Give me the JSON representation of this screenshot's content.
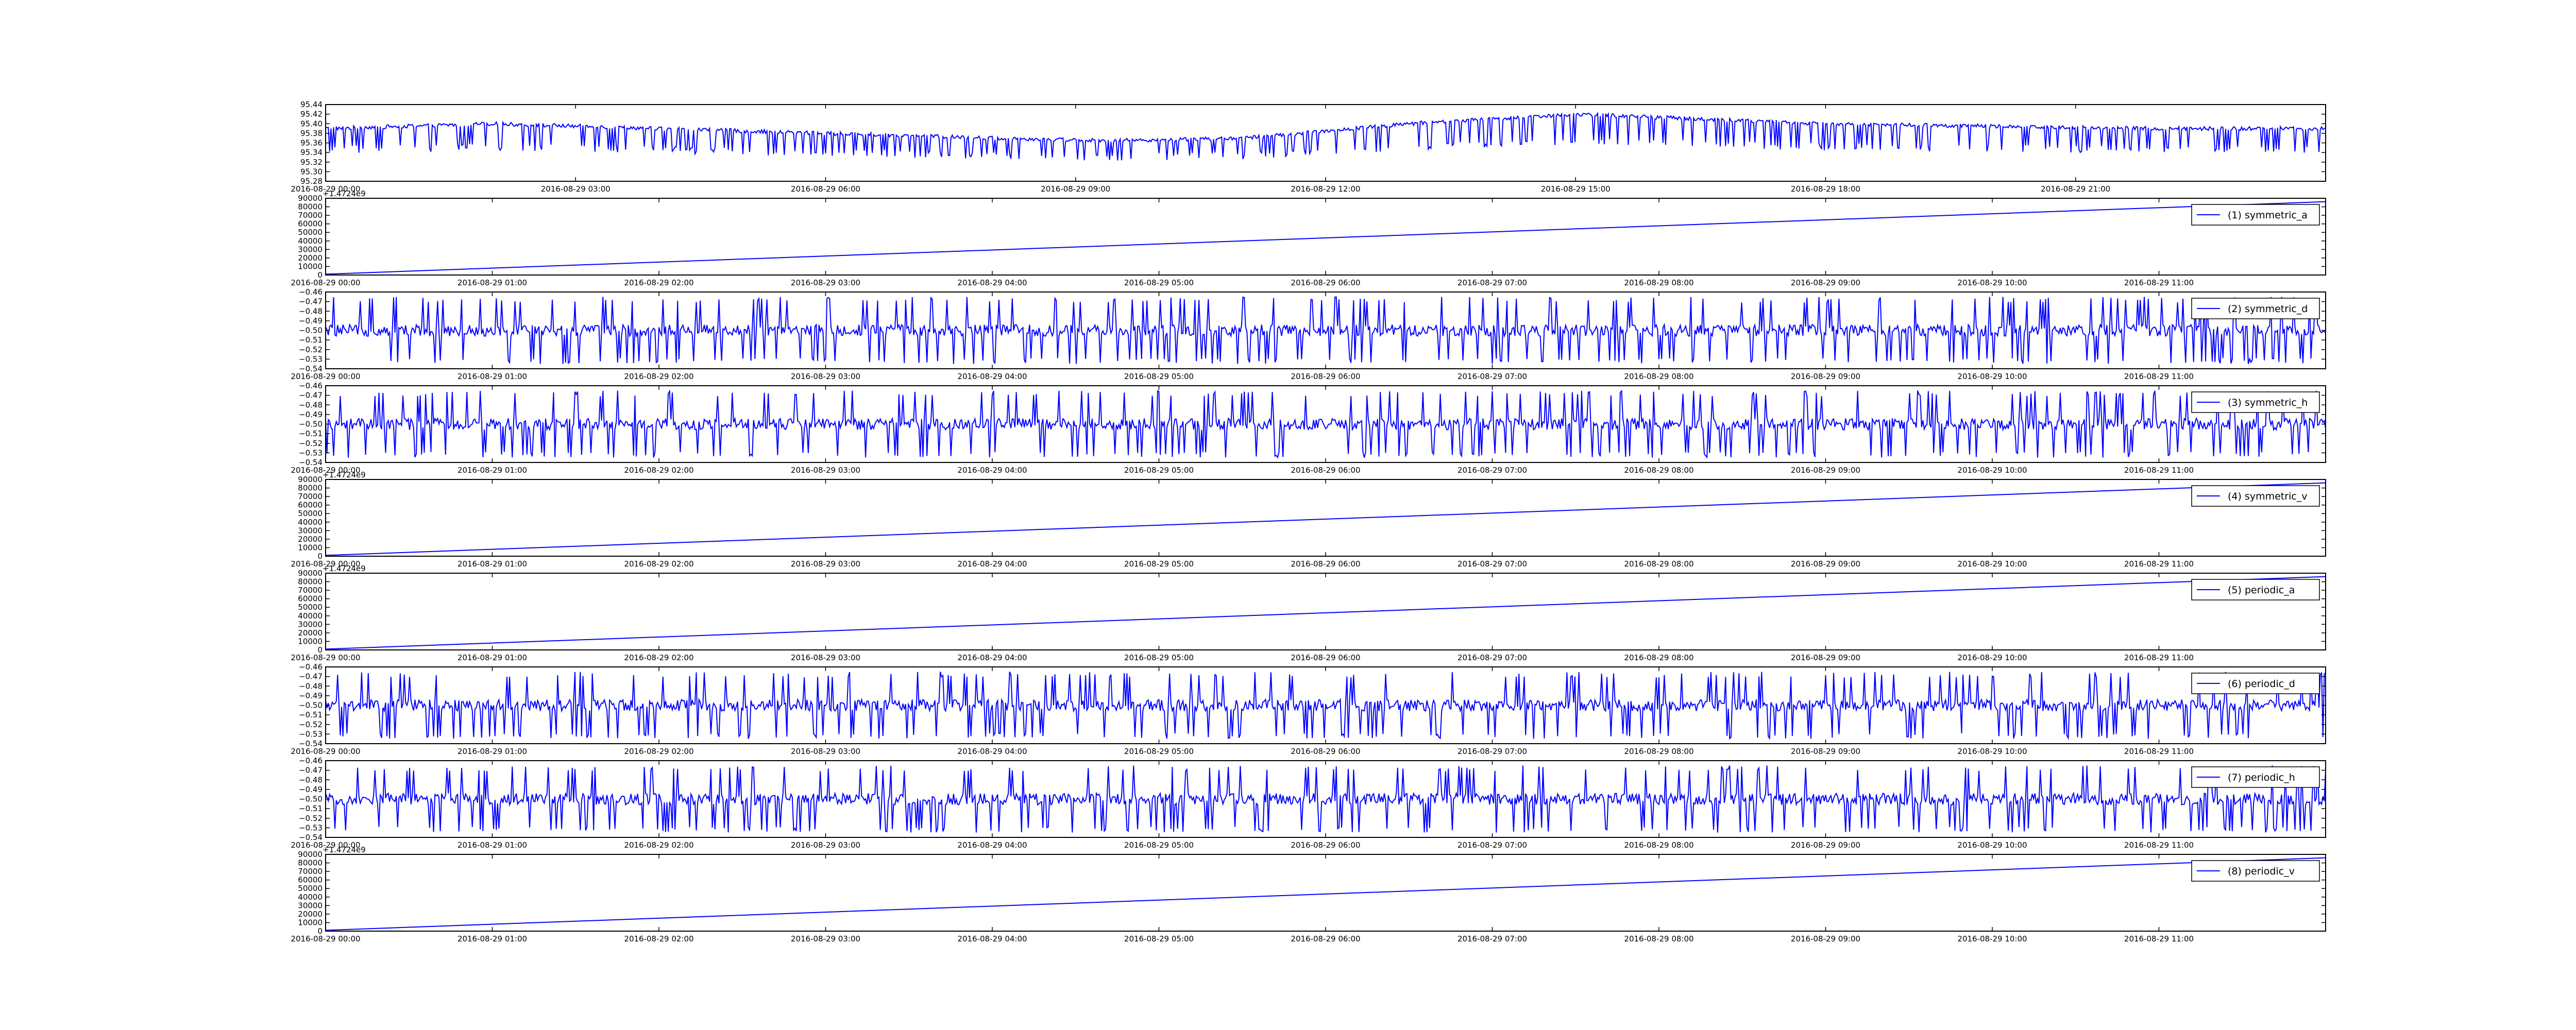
{
  "figure": {
    "background": "#ffffff",
    "line_color": "#0000ff",
    "frame_color": "#000000"
  },
  "chart_data": [
    {
      "type": "line",
      "title": "",
      "xlabel": "",
      "ylabel": "",
      "legend": null,
      "legend_position": "none",
      "grid": false,
      "pattern": "wave_dropouts",
      "offset_label": "",
      "xlim": [
        "2016-08-29 00:00",
        "2016-08-30 00:00"
      ],
      "ylim": [
        95.28,
        95.44
      ],
      "yticks": [
        "95.28",
        "95.30",
        "95.32",
        "95.34",
        "95.36",
        "95.38",
        "95.40",
        "95.42",
        "95.44"
      ],
      "xtick_labels": [
        "2016-08-29 00:00",
        "2016-08-29 03:00",
        "2016-08-29 06:00",
        "2016-08-29 09:00",
        "2016-08-29 12:00",
        "2016-08-29 15:00",
        "2016-08-29 18:00",
        "2016-08-29 21:00"
      ],
      "baseline": {
        "x": [
          "2016-08-29 00:00",
          "2016-08-29 02:00",
          "2016-08-29 04:00",
          "2016-08-29 06:00",
          "2016-08-29 08:00",
          "2016-08-29 09:30",
          "2016-08-29 11:00",
          "2016-08-29 13:00",
          "2016-08-29 15:00",
          "2016-08-29 16:30",
          "2016-08-29 18:00",
          "2016-08-29 20:00",
          "2016-08-29 22:00",
          "2016-08-30 00:00"
        ],
        "y": [
          95.39,
          95.4,
          95.39,
          95.38,
          95.37,
          95.365,
          95.37,
          95.4,
          95.42,
          95.41,
          95.4,
          95.395,
          95.39,
          95.39
        ]
      },
      "dropout_floor": 95.32
    },
    {
      "type": "line",
      "title": "",
      "xlabel": "",
      "ylabel": "",
      "legend": "(1) symmetric_a",
      "legend_position": "upper right",
      "grid": false,
      "pattern": "linear",
      "offset_label": "+1.4724e9",
      "xlim": [
        "2016-08-29 00:00",
        "2016-08-29 12:00"
      ],
      "ylim": [
        0,
        90000
      ],
      "yticks": [
        "0",
        "10000",
        "20000",
        "30000",
        "40000",
        "50000",
        "60000",
        "70000",
        "80000",
        "90000"
      ],
      "xtick_labels": [
        "2016-08-29 00:00",
        "2016-08-29 01:00",
        "2016-08-29 02:00",
        "2016-08-29 03:00",
        "2016-08-29 04:00",
        "2016-08-29 05:00",
        "2016-08-29 06:00",
        "2016-08-29 07:00",
        "2016-08-29 08:00",
        "2016-08-29 09:00",
        "2016-08-29 10:00",
        "2016-08-29 11:00"
      ],
      "x": [
        "2016-08-29 00:00",
        "2016-08-29 12:00"
      ],
      "y": [
        1000,
        86000
      ]
    },
    {
      "type": "line",
      "title": "",
      "xlabel": "",
      "ylabel": "",
      "legend": "(2) symmetric_d",
      "legend_position": "upper right",
      "grid": false,
      "pattern": "noise_spikes",
      "offset_label": "",
      "xlim": [
        "2016-08-29 00:00",
        "2016-08-29 12:00"
      ],
      "ylim": [
        -0.54,
        -0.46
      ],
      "yticks": [
        "−0.54",
        "−0.53",
        "−0.52",
        "−0.51",
        "−0.50",
        "−0.49",
        "−0.48",
        "−0.47",
        "−0.46"
      ],
      "xtick_labels": [
        "2016-08-29 00:00",
        "2016-08-29 01:00",
        "2016-08-29 02:00",
        "2016-08-29 03:00",
        "2016-08-29 04:00",
        "2016-08-29 05:00",
        "2016-08-29 06:00",
        "2016-08-29 07:00",
        "2016-08-29 08:00",
        "2016-08-29 09:00",
        "2016-08-29 10:00",
        "2016-08-29 11:00"
      ],
      "center": -0.5,
      "noise": 0.006,
      "spike_high": -0.465,
      "spike_low": -0.535
    },
    {
      "type": "line",
      "title": "",
      "xlabel": "",
      "ylabel": "",
      "legend": "(3) symmetric_h",
      "legend_position": "upper right",
      "grid": false,
      "pattern": "noise_spikes",
      "offset_label": "",
      "xlim": [
        "2016-08-29 00:00",
        "2016-08-29 12:00"
      ],
      "ylim": [
        -0.54,
        -0.46
      ],
      "yticks": [
        "−0.54",
        "−0.53",
        "−0.52",
        "−0.51",
        "−0.50",
        "−0.49",
        "−0.48",
        "−0.47",
        "−0.46"
      ],
      "xtick_labels": [
        "2016-08-29 00:00",
        "2016-08-29 01:00",
        "2016-08-29 02:00",
        "2016-08-29 03:00",
        "2016-08-29 04:00",
        "2016-08-29 05:00",
        "2016-08-29 06:00",
        "2016-08-29 07:00",
        "2016-08-29 08:00",
        "2016-08-29 09:00",
        "2016-08-29 10:00",
        "2016-08-29 11:00"
      ],
      "center": -0.5,
      "noise": 0.006,
      "spike_high": -0.465,
      "spike_low": -0.535
    },
    {
      "type": "line",
      "title": "",
      "xlabel": "",
      "ylabel": "",
      "legend": "(4) symmetric_v",
      "legend_position": "upper right",
      "grid": false,
      "pattern": "linear",
      "offset_label": "+1.4724e9",
      "xlim": [
        "2016-08-29 00:00",
        "2016-08-29 12:00"
      ],
      "ylim": [
        0,
        90000
      ],
      "yticks": [
        "0",
        "10000",
        "20000",
        "30000",
        "40000",
        "50000",
        "60000",
        "70000",
        "80000",
        "90000"
      ],
      "xtick_labels": [
        "2016-08-29 00:00",
        "2016-08-29 01:00",
        "2016-08-29 02:00",
        "2016-08-29 03:00",
        "2016-08-29 04:00",
        "2016-08-29 05:00",
        "2016-08-29 06:00",
        "2016-08-29 07:00",
        "2016-08-29 08:00",
        "2016-08-29 09:00",
        "2016-08-29 10:00",
        "2016-08-29 11:00"
      ],
      "x": [
        "2016-08-29 00:00",
        "2016-08-29 12:00"
      ],
      "y": [
        1000,
        86000
      ]
    },
    {
      "type": "line",
      "title": "",
      "xlabel": "",
      "ylabel": "",
      "legend": "(5) periodic_a",
      "legend_position": "upper right",
      "grid": false,
      "pattern": "linear",
      "offset_label": "+1.4724e9",
      "xlim": [
        "2016-08-29 00:00",
        "2016-08-29 12:00"
      ],
      "ylim": [
        0,
        90000
      ],
      "yticks": [
        "0",
        "10000",
        "20000",
        "30000",
        "40000",
        "50000",
        "60000",
        "70000",
        "80000",
        "90000"
      ],
      "xtick_labels": [
        "2016-08-29 00:00",
        "2016-08-29 01:00",
        "2016-08-29 02:00",
        "2016-08-29 03:00",
        "2016-08-29 04:00",
        "2016-08-29 05:00",
        "2016-08-29 06:00",
        "2016-08-29 07:00",
        "2016-08-29 08:00",
        "2016-08-29 09:00",
        "2016-08-29 10:00",
        "2016-08-29 11:00"
      ],
      "x": [
        "2016-08-29 00:00",
        "2016-08-29 12:00"
      ],
      "y": [
        1000,
        86000
      ]
    },
    {
      "type": "line",
      "title": "",
      "xlabel": "",
      "ylabel": "",
      "legend": "(6) periodic_d",
      "legend_position": "upper right",
      "grid": false,
      "pattern": "noise_spikes",
      "offset_label": "",
      "xlim": [
        "2016-08-29 00:00",
        "2016-08-29 12:00"
      ],
      "ylim": [
        -0.54,
        -0.46
      ],
      "yticks": [
        "−0.54",
        "−0.53",
        "−0.52",
        "−0.51",
        "−0.50",
        "−0.49",
        "−0.48",
        "−0.47",
        "−0.46"
      ],
      "xtick_labels": [
        "2016-08-29 00:00",
        "2016-08-29 01:00",
        "2016-08-29 02:00",
        "2016-08-29 03:00",
        "2016-08-29 04:00",
        "2016-08-29 05:00",
        "2016-08-29 06:00",
        "2016-08-29 07:00",
        "2016-08-29 08:00",
        "2016-08-29 09:00",
        "2016-08-29 10:00",
        "2016-08-29 11:00"
      ],
      "center": -0.5,
      "noise": 0.006,
      "spike_high": -0.465,
      "spike_low": -0.535
    },
    {
      "type": "line",
      "title": "",
      "xlabel": "",
      "ylabel": "",
      "legend": "(7) periodic_h",
      "legend_position": "upper right",
      "grid": false,
      "pattern": "noise_spikes",
      "offset_label": "",
      "xlim": [
        "2016-08-29 00:00",
        "2016-08-29 12:00"
      ],
      "ylim": [
        -0.54,
        -0.46
      ],
      "yticks": [
        "−0.54",
        "−0.53",
        "−0.52",
        "−0.51",
        "−0.50",
        "−0.49",
        "−0.48",
        "−0.47",
        "−0.46"
      ],
      "xtick_labels": [
        "2016-08-29 00:00",
        "2016-08-29 01:00",
        "2016-08-29 02:00",
        "2016-08-29 03:00",
        "2016-08-29 04:00",
        "2016-08-29 05:00",
        "2016-08-29 06:00",
        "2016-08-29 07:00",
        "2016-08-29 08:00",
        "2016-08-29 09:00",
        "2016-08-29 10:00",
        "2016-08-29 11:00"
      ],
      "center": -0.5,
      "noise": 0.006,
      "spike_high": -0.465,
      "spike_low": -0.535
    },
    {
      "type": "line",
      "title": "",
      "xlabel": "",
      "ylabel": "",
      "legend": "(8) periodic_v",
      "legend_position": "upper right",
      "grid": false,
      "pattern": "linear",
      "offset_label": "+1.4724e9",
      "xlim": [
        "2016-08-29 00:00",
        "2016-08-29 12:00"
      ],
      "ylim": [
        0,
        90000
      ],
      "yticks": [
        "0",
        "10000",
        "20000",
        "30000",
        "40000",
        "50000",
        "60000",
        "70000",
        "80000",
        "90000"
      ],
      "xtick_labels": [
        "2016-08-29 00:00",
        "2016-08-29 01:00",
        "2016-08-29 02:00",
        "2016-08-29 03:00",
        "2016-08-29 04:00",
        "2016-08-29 05:00",
        "2016-08-29 06:00",
        "2016-08-29 07:00",
        "2016-08-29 08:00",
        "2016-08-29 09:00",
        "2016-08-29 10:00",
        "2016-08-29 11:00"
      ],
      "x": [
        "2016-08-29 00:00",
        "2016-08-29 12:00"
      ],
      "y": [
        1000,
        86000
      ]
    }
  ]
}
